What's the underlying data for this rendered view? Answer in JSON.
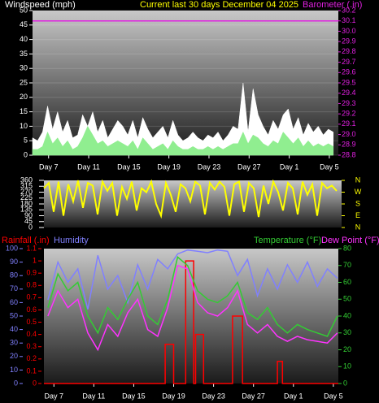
{
  "chart_data": [
    {
      "type": "area",
      "title": "Current last 30 days December 04 2025",
      "ylabel": "Windspeed (mph)",
      "y2label": "Barometer (.in)",
      "x": [
        0,
        0.5,
        1,
        1.5,
        2,
        2.5,
        3,
        3.5,
        4,
        4.5,
        5,
        5.5,
        6,
        6.5,
        7,
        7.5,
        8,
        8.5,
        9,
        9.5,
        10,
        10.5,
        11,
        11.5,
        12,
        12.5,
        13,
        13.5,
        14,
        14.5,
        15,
        15.5,
        16,
        16.5,
        17,
        17.5,
        18,
        18.5,
        19,
        19.5,
        20,
        20.5,
        21,
        21.5,
        22,
        22.5,
        23,
        23.5,
        24,
        24.5,
        25,
        25.5,
        26,
        26.5,
        27,
        27.5,
        28,
        28.5,
        29,
        29.5,
        30
      ],
      "series": [
        {
          "color": "#ffffff",
          "values": [
            6,
            5,
            8,
            17,
            9,
            15,
            8,
            12,
            6,
            7,
            14,
            10,
            15,
            8,
            12,
            6,
            9,
            12,
            10,
            7,
            12,
            6,
            13,
            9,
            6,
            8,
            10,
            6,
            12,
            7,
            5,
            6,
            8,
            6,
            5,
            7,
            6,
            8,
            5,
            7,
            10,
            9,
            25,
            8,
            23,
            14,
            10,
            7,
            12,
            9,
            14,
            16,
            9,
            13,
            7,
            11,
            8,
            10,
            7,
            9,
            8
          ]
        },
        {
          "color": "#90ee90",
          "values": [
            2,
            2,
            3,
            8,
            4,
            6,
            3,
            5,
            2,
            3,
            6,
            10,
            7,
            4,
            5,
            3,
            4,
            5,
            4,
            3,
            5,
            2,
            6,
            4,
            2,
            3,
            4,
            2,
            5,
            3,
            2,
            2,
            3,
            2,
            2,
            3,
            2,
            3,
            2,
            3,
            4,
            4,
            8,
            4,
            7,
            6,
            4,
            3,
            5,
            4,
            8,
            6,
            4,
            6,
            3,
            5,
            3,
            4,
            3,
            4,
            3
          ]
        },
        {
          "color": "#e020e0",
          "axis": "y2",
          "x": [
            0,
            30.5
          ],
          "values": [
            30.1,
            30.1
          ]
        }
      ],
      "xlim": [
        0,
        30.5
      ],
      "xticks": [
        {
          "value": 1.6,
          "label": "Day 7"
        },
        {
          "value": 5.6,
          "label": "Day 11"
        },
        {
          "value": 9.6,
          "label": "Day 15"
        },
        {
          "value": 13.6,
          "label": "Day 19"
        },
        {
          "value": 17.6,
          "label": "Day 23"
        },
        {
          "value": 21.6,
          "label": "Day 27"
        },
        {
          "value": 25.6,
          "label": "Day 1"
        },
        {
          "value": 29.6,
          "label": "Day 5"
        }
      ],
      "ylim": [
        0,
        50
      ],
      "yticks": [
        0,
        5,
        10,
        15,
        20,
        25,
        30,
        35,
        40,
        45,
        50
      ],
      "y2lim": [
        28.8,
        30.2
      ],
      "y2ticks": [
        28.8,
        28.9,
        {
          "value": 29,
          "label": "29.0"
        },
        29.1,
        29.2,
        29.3,
        29.4,
        29.5,
        29.6,
        29.7,
        29.8,
        29.9,
        {
          "value": 30,
          "label": "30.0"
        },
        30.1,
        30.2
      ],
      "grid": true
    },
    {
      "type": "line",
      "x": [
        0,
        0.5,
        1,
        1.5,
        2,
        2.5,
        3,
        3.5,
        4,
        4.5,
        5,
        5.5,
        6,
        6.5,
        7,
        7.5,
        8,
        8.5,
        9,
        9.5,
        10,
        10.5,
        11,
        11.5,
        12,
        12.5,
        13,
        13.5,
        14,
        14.5,
        15,
        15.5,
        16,
        16.5,
        17,
        17.5,
        18,
        18.5,
        19,
        19.5,
        20,
        20.5,
        21,
        21.5,
        22,
        22.5,
        23,
        23.5,
        24,
        24.5,
        25,
        25.5,
        26,
        26.5,
        27,
        27.5,
        28,
        28.5,
        29,
        29.5,
        30
      ],
      "series": [
        {
          "color": "#ffff00",
          "values": [
            300,
            340,
            120,
            350,
            90,
            330,
            200,
            360,
            150,
            340,
            320,
            100,
            350,
            280,
            340,
            90,
            310,
            220,
            350,
            130,
            300,
            270,
            350,
            180,
            90,
            340,
            250,
            120,
            330,
            300,
            200,
            350,
            320,
            100,
            340,
            290,
            350,
            310,
            90,
            330,
            350,
            120,
            340,
            300,
            80,
            320,
            180,
            350,
            270,
            130,
            340,
            300,
            100,
            350,
            250,
            330,
            90,
            340,
            300,
            320,
            280
          ]
        }
      ],
      "xlim": [
        0,
        30.5
      ],
      "ylim": [
        0,
        360
      ],
      "yticks": [
        0,
        45,
        90,
        135,
        180,
        225,
        270,
        315,
        360
      ],
      "y2lim": [
        0,
        360
      ],
      "y2ticks": [
        {
          "value": 360,
          "label": "N"
        },
        {
          "value": 270,
          "label": "W"
        },
        {
          "value": 180,
          "label": "S"
        },
        {
          "value": 90,
          "label": "E"
        },
        {
          "value": 0,
          "label": "N"
        }
      ],
      "grid": false
    },
    {
      "type": "line",
      "x": [
        1,
        2,
        3,
        4,
        5,
        6,
        7,
        8,
        9,
        10,
        11,
        12,
        13,
        14,
        15,
        16,
        17,
        18,
        19,
        20,
        21,
        22,
        23,
        24,
        25,
        26,
        27,
        28,
        29,
        30
      ],
      "series": [
        {
          "name": "Rainfall (.in)",
          "color": "#ff0000",
          "x": [
            0.6,
            12.75,
            12.75,
            13.6,
            13.6,
            14.8,
            14.8,
            15.6,
            15.6,
            15.8,
            15.8,
            16.6,
            16.6,
            19.5,
            19.5,
            20.5,
            20.5,
            24.0,
            24.0,
            24.5,
            24.5,
            30.1
          ],
          "values": [
            0,
            0,
            0.32,
            0.32,
            0,
            0,
            1.0,
            1.0,
            0,
            0,
            0.4,
            0.4,
            0,
            0,
            0.55,
            0.55,
            0,
            0,
            0.18,
            0.18,
            0,
            0
          ]
        },
        {
          "name": "Humidity",
          "color": "#8080ff",
          "axis": "y3",
          "values": [
            62,
            90,
            75,
            85,
            55,
            95,
            70,
            80,
            60,
            88,
            70,
            92,
            85,
            96,
            99,
            98,
            97,
            99,
            98,
            80,
            92,
            65,
            85,
            70,
            88,
            75,
            90,
            72,
            85,
            78
          ]
        },
        {
          "name": "Temperature (°F)",
          "color": "#33cc33",
          "axis": "y2",
          "values": [
            45,
            65,
            55,
            60,
            40,
            30,
            45,
            38,
            50,
            60,
            40,
            35,
            50,
            75,
            70,
            55,
            50,
            48,
            52,
            60,
            42,
            38,
            45,
            35,
            30,
            35,
            32,
            30,
            28,
            40
          ]
        },
        {
          "name": "Dew Point (°F)",
          "color": "#ff33ff",
          "axis": "y2",
          "values": [
            40,
            55,
            45,
            50,
            30,
            20,
            35,
            28,
            42,
            50,
            32,
            28,
            45,
            70,
            68,
            48,
            42,
            40,
            45,
            55,
            35,
            30,
            35,
            28,
            25,
            28,
            26,
            25,
            24,
            30
          ]
        }
      ],
      "xlim": [
        0.6,
        30.1
      ],
      "xticks": [
        {
          "value": 1.6,
          "label": "Day 7"
        },
        {
          "value": 5.6,
          "label": "Day 11"
        },
        {
          "value": 9.6,
          "label": "Day 15"
        },
        {
          "value": 13.6,
          "label": "Day 19"
        },
        {
          "value": 17.6,
          "label": "Day 23"
        },
        {
          "value": 21.6,
          "label": "Day 27"
        },
        {
          "value": 25.6,
          "label": "Day 1"
        },
        {
          "value": 29.6,
          "label": "Day 5"
        }
      ],
      "ylim": [
        0,
        1.1
      ],
      "yticks": [
        0,
        0.1,
        0.2,
        0.3,
        0.4,
        0.5,
        0.6,
        0.7,
        0.8,
        0.9,
        1,
        1.1
      ],
      "y3lim": [
        0,
        100
      ],
      "y3ticks": [
        0,
        10,
        20,
        30,
        40,
        50,
        60,
        70,
        80,
        90,
        100
      ],
      "y2lim": [
        0,
        80
      ],
      "y2ticks": [
        0,
        10,
        20,
        30,
        40,
        50,
        60,
        70,
        80
      ],
      "grid": false
    }
  ]
}
